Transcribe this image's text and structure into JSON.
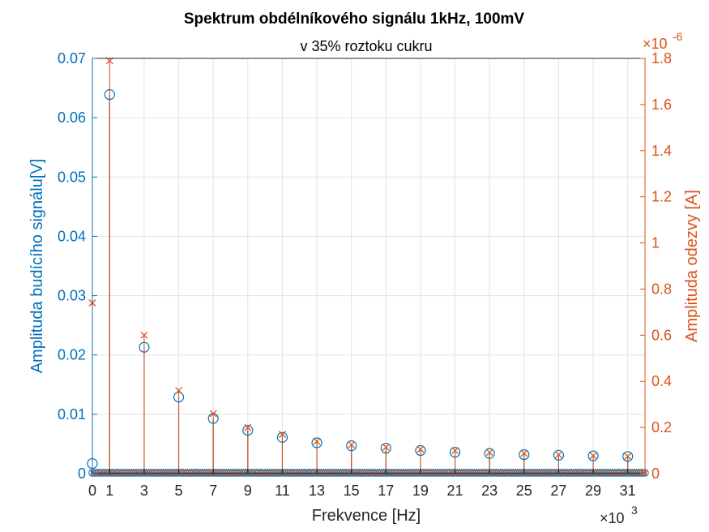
{
  "chart_data": {
    "type": "stem",
    "title": "Spektrum obdélníkového signálu 1kHz, 100mV",
    "subtitle": "v 35% roztoku cukru",
    "xlabel": "Frekvence [Hz]",
    "x_exponent_label": "×10",
    "x_exponent": "3",
    "x_unit_scale": 1000,
    "xlim": [
      0,
      32000
    ],
    "x_ticks": [
      0,
      1000,
      3000,
      5000,
      7000,
      9000,
      11000,
      13000,
      15000,
      17000,
      19000,
      21000,
      23000,
      25000,
      27000,
      29000,
      31000
    ],
    "x_tick_labels": [
      "0",
      "1",
      "3",
      "5",
      "7",
      "9",
      "11",
      "13",
      "15",
      "17",
      "19",
      "21",
      "23",
      "25",
      "27",
      "29",
      "31"
    ],
    "grid": true,
    "left_axis": {
      "label": "Amplituda budícího signálu[V]",
      "color": "#0072BD",
      "ylim": [
        0,
        0.07
      ],
      "ticks": [
        0,
        0.01,
        0.02,
        0.03,
        0.04,
        0.05,
        0.06,
        0.07
      ],
      "tick_labels": [
        "0",
        "0.01",
        "0.02",
        "0.03",
        "0.04",
        "0.05",
        "0.06",
        "0.07"
      ]
    },
    "right_axis": {
      "label": "Amplituda odezvy [A]",
      "color": "#D95319",
      "exponent_label": "×10",
      "exponent": "-6",
      "ylim": [
        0,
        1.8
      ],
      "ticks": [
        0,
        0.2,
        0.4,
        0.6,
        0.8,
        1.0,
        1.2,
        1.4,
        1.6,
        1.8
      ],
      "tick_labels": [
        "0",
        "0.2",
        "0.4",
        "0.6",
        "0.8",
        "1",
        "1.2",
        "1.4",
        "1.6",
        "1.8"
      ]
    },
    "series": [
      {
        "axis": "left",
        "marker": "circle",
        "x": [
          0,
          1000,
          3000,
          5000,
          7000,
          9000,
          11000,
          13000,
          15000,
          17000,
          19000,
          21000,
          23000,
          25000,
          27000,
          29000,
          31000
        ],
        "values": [
          0.0017,
          0.0639,
          0.0213,
          0.0129,
          0.0093,
          0.0073,
          0.0061,
          0.0052,
          0.0047,
          0.0043,
          0.0039,
          0.0036,
          0.0034,
          0.0032,
          0.0031,
          0.003,
          0.0029
        ]
      },
      {
        "axis": "right",
        "marker": "x",
        "x": [
          0,
          1000,
          3000,
          5000,
          7000,
          9000,
          11000,
          13000,
          15000,
          17000,
          19000,
          21000,
          23000,
          25000,
          27000,
          29000,
          31000
        ],
        "values": [
          0.74,
          1.79,
          0.6,
          0.36,
          0.26,
          0.2,
          0.17,
          0.14,
          0.125,
          0.115,
          0.105,
          0.1,
          0.092,
          0.088,
          0.082,
          0.078,
          0.075
        ]
      }
    ],
    "baseline_step_hz": 125
  }
}
